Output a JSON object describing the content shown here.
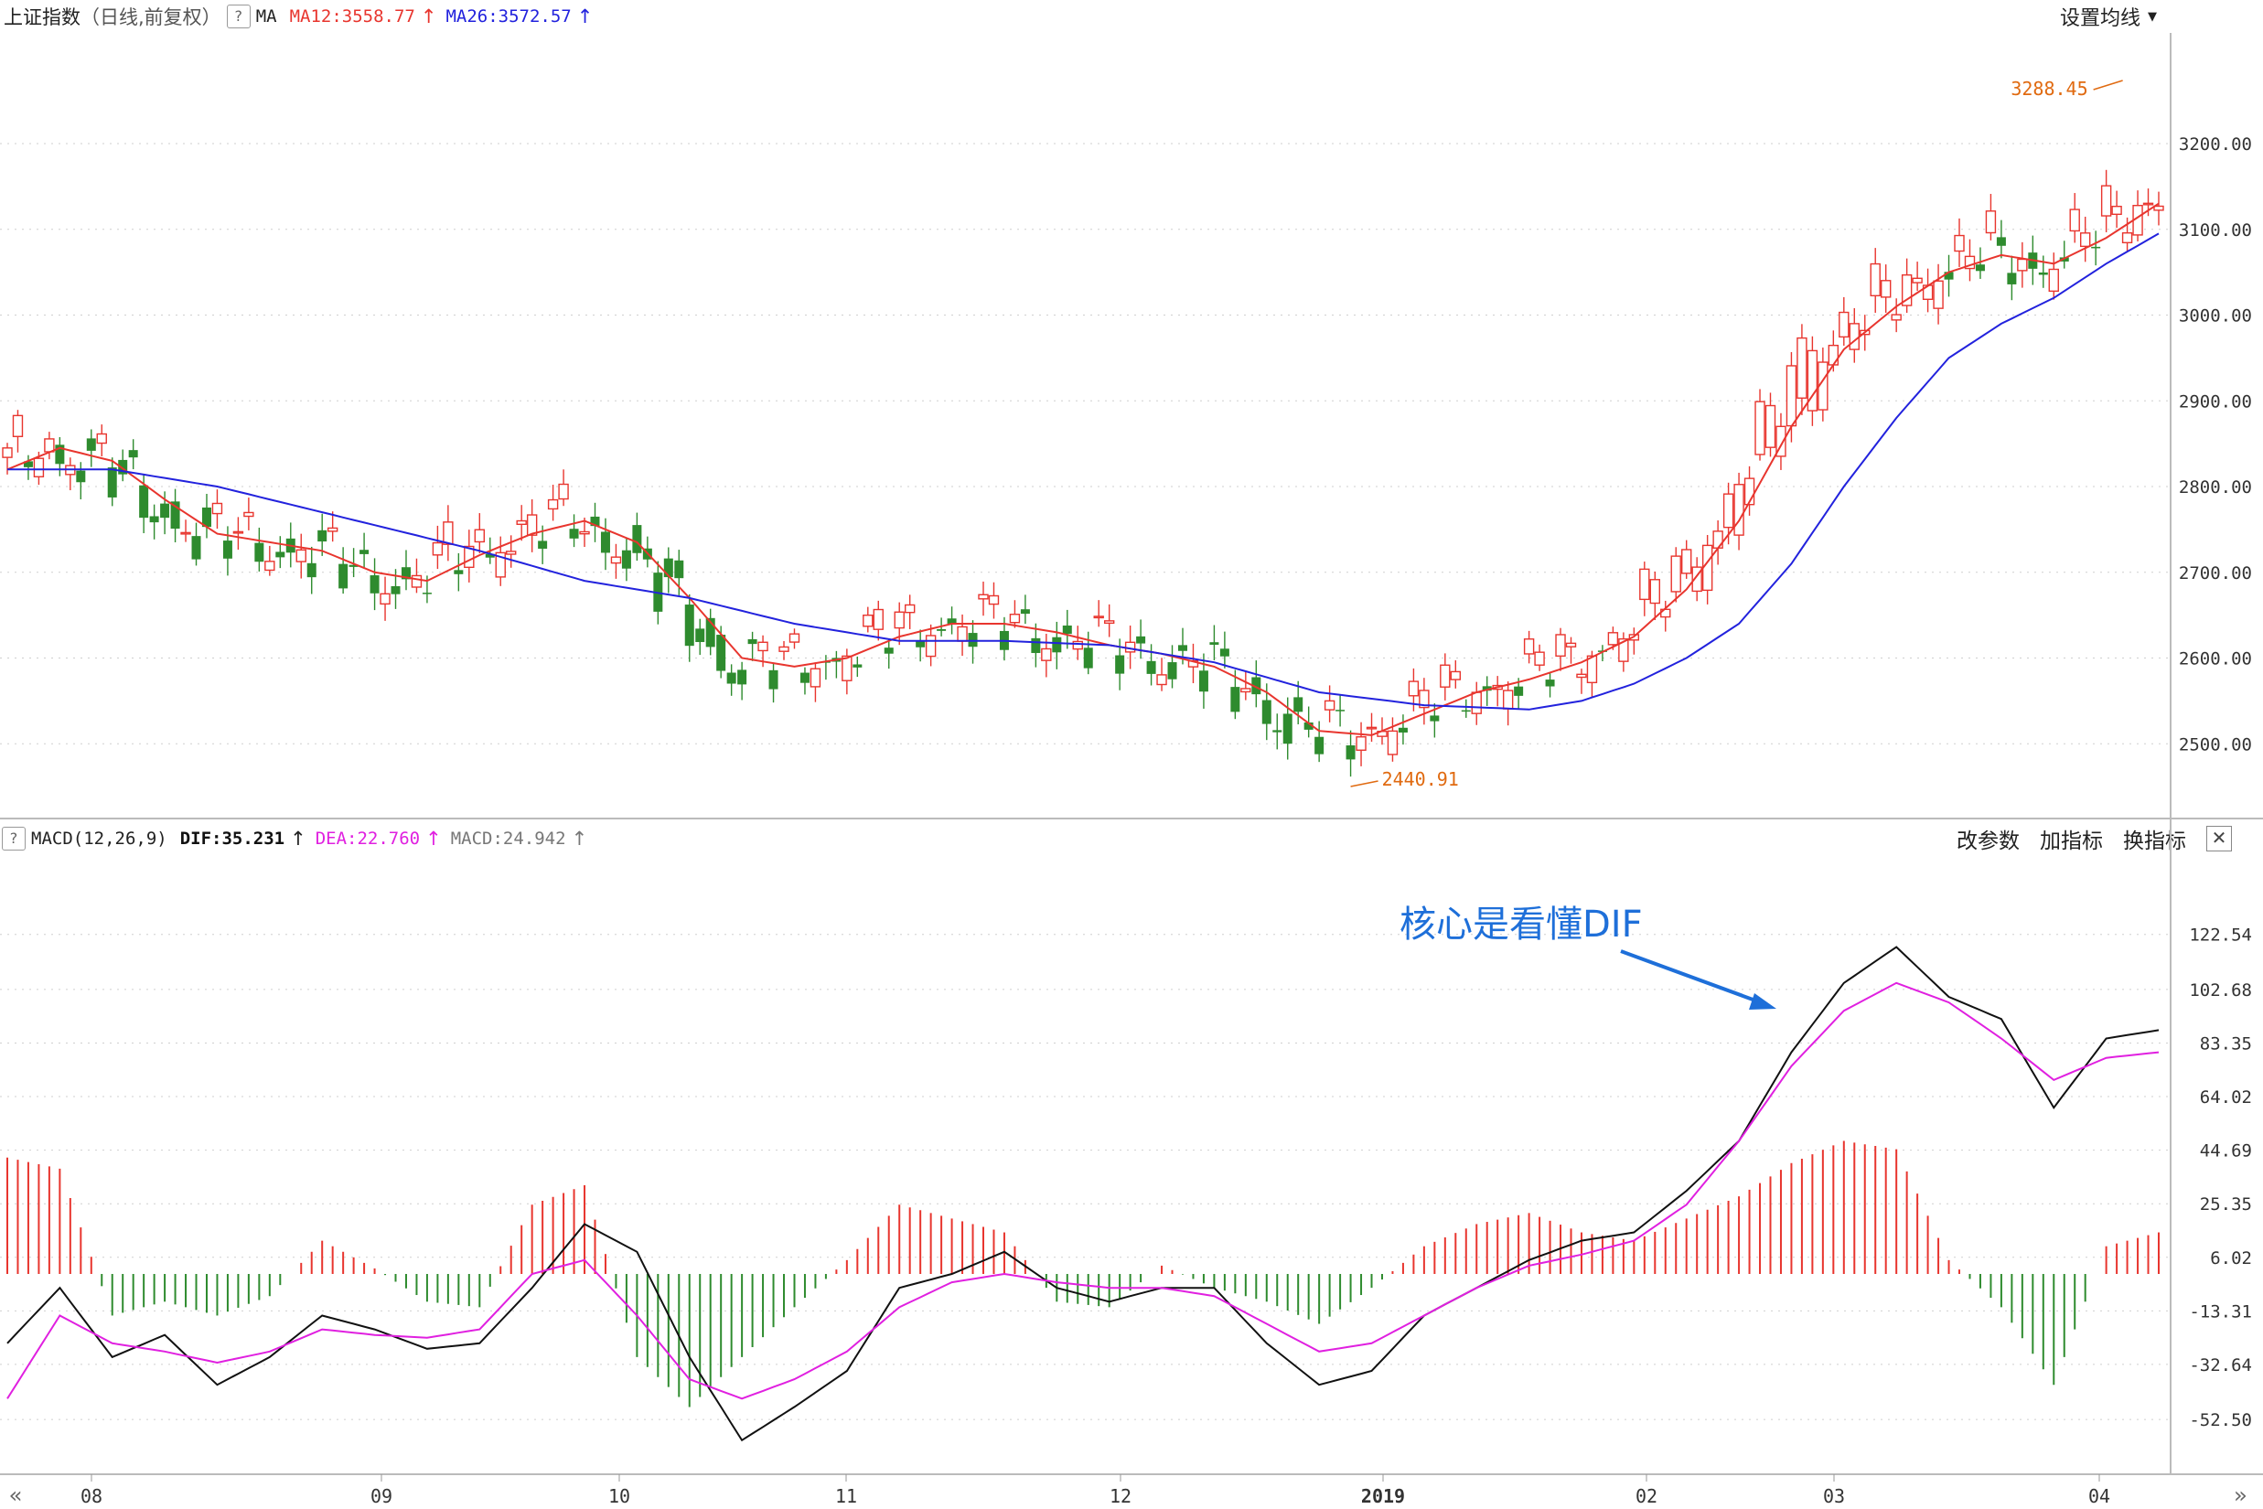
{
  "header": {
    "index_name": "上证指数",
    "period": "（日线,前复权）",
    "help": "?",
    "ma_label": "MA",
    "ma12_label": "MA12:3558.77",
    "ma26_label": "MA26:3572.57",
    "arrow": "↑",
    "settings_label": "设置均线"
  },
  "macd_header": {
    "help": "?",
    "title": "MACD(12,26,9)",
    "dif_label": "DIF:35.231",
    "dea_label": "DEA:22.760",
    "macd_label": "MACD:24.942",
    "arrow": "↑",
    "buttons": [
      "改参数",
      "加指标",
      "换指标"
    ],
    "close": "✕"
  },
  "annotation": {
    "text": "核心是看懂DIF"
  },
  "price_axis": [
    "3200.00",
    "3100.00",
    "3000.00",
    "2900.00",
    "2800.00",
    "2700.00",
    "2600.00",
    "2500.00"
  ],
  "macd_axis": [
    "122.54",
    "102.68",
    "83.35",
    "64.02",
    "44.69",
    "25.35",
    "6.02",
    "-13.31",
    "-32.64",
    "-52.50"
  ],
  "time_axis": [
    "08",
    "09",
    "10",
    "11",
    "12",
    "2019",
    "02",
    "03",
    "04"
  ],
  "high_label": "3288.45",
  "low_label": "2440.91",
  "nav_prev": "«",
  "nav_next": "»",
  "colors": {
    "up": "#e8352e",
    "down": "#2e8b2e",
    "ma12": "#e8352e",
    "ma26": "#2222dd",
    "dif": "#111111",
    "dea": "#e020e0",
    "annotation": "#1e6fd9",
    "extreme": "#e06a10"
  },
  "chart_data": [
    {
      "type": "candlestick",
      "title": "上证指数（日线,前复权）",
      "series": [
        {
          "name": "MA12",
          "anchors": [
            [
              0,
              2820
            ],
            [
              5,
              2845
            ],
            [
              10,
              2830
            ],
            [
              15,
              2785
            ],
            [
              20,
              2745
            ],
            [
              25,
              2735
            ],
            [
              30,
              2725
            ],
            [
              35,
              2700
            ],
            [
              40,
              2690
            ],
            [
              45,
              2720
            ],
            [
              50,
              2745
            ],
            [
              55,
              2760
            ],
            [
              60,
              2735
            ],
            [
              65,
              2670
            ],
            [
              70,
              2600
            ],
            [
              75,
              2590
            ],
            [
              80,
              2600
            ],
            [
              85,
              2625
            ],
            [
              90,
              2640
            ],
            [
              95,
              2640
            ],
            [
              100,
              2630
            ],
            [
              105,
              2615
            ],
            [
              110,
              2605
            ],
            [
              115,
              2590
            ],
            [
              120,
              2560
            ],
            [
              125,
              2515
            ],
            [
              130,
              2510
            ],
            [
              135,
              2535
            ],
            [
              140,
              2560
            ],
            [
              145,
              2575
            ],
            [
              150,
              2595
            ],
            [
              155,
              2625
            ],
            [
              160,
              2680
            ],
            [
              165,
              2760
            ],
            [
              170,
              2870
            ],
            [
              175,
              2960
            ],
            [
              180,
              3010
            ],
            [
              185,
              3050
            ],
            [
              190,
              3070
            ],
            [
              195,
              3060
            ],
            [
              200,
              3090
            ],
            [
              205,
              3130
            ]
          ]
        },
        {
          "name": "MA26",
          "anchors": [
            [
              0,
              2820
            ],
            [
              10,
              2820
            ],
            [
              20,
              2800
            ],
            [
              30,
              2770
            ],
            [
              40,
              2740
            ],
            [
              45,
              2725
            ],
            [
              55,
              2690
            ],
            [
              65,
              2670
            ],
            [
              75,
              2640
            ],
            [
              85,
              2620
            ],
            [
              95,
              2620
            ],
            [
              105,
              2615
            ],
            [
              115,
              2595
            ],
            [
              125,
              2560
            ],
            [
              135,
              2545
            ],
            [
              145,
              2540
            ],
            [
              150,
              2550
            ],
            [
              155,
              2570
            ],
            [
              160,
              2600
            ],
            [
              165,
              2640
            ],
            [
              170,
              2710
            ],
            [
              175,
              2800
            ],
            [
              180,
              2880
            ],
            [
              185,
              2950
            ],
            [
              190,
              2990
            ],
            [
              195,
              3020
            ],
            [
              200,
              3060
            ],
            [
              205,
              3095
            ]
          ]
        }
      ]
    },
    {
      "type": "line",
      "title": "MACD(12,26,9)",
      "series": [
        {
          "name": "DIF",
          "anchors": [
            [
              0,
              -25
            ],
            [
              5,
              -5
            ],
            [
              10,
              -30
            ],
            [
              15,
              -22
            ],
            [
              20,
              -40
            ],
            [
              25,
              -30
            ],
            [
              30,
              -15
            ],
            [
              35,
              -20
            ],
            [
              40,
              -27
            ],
            [
              45,
              -25
            ],
            [
              50,
              -5
            ],
            [
              55,
              18
            ],
            [
              60,
              8
            ],
            [
              65,
              -30
            ],
            [
              70,
              -60
            ],
            [
              75,
              -48
            ],
            [
              80,
              -35
            ],
            [
              85,
              -5
            ],
            [
              90,
              0
            ],
            [
              95,
              8
            ],
            [
              100,
              -5
            ],
            [
              105,
              -10
            ],
            [
              110,
              -5
            ],
            [
              115,
              -5
            ],
            [
              120,
              -25
            ],
            [
              125,
              -40
            ],
            [
              130,
              -35
            ],
            [
              135,
              -15
            ],
            [
              140,
              -5
            ],
            [
              145,
              5
            ],
            [
              150,
              12
            ],
            [
              155,
              15
            ],
            [
              160,
              30
            ],
            [
              165,
              48
            ],
            [
              170,
              80
            ],
            [
              175,
              105
            ],
            [
              180,
              118
            ],
            [
              185,
              100
            ],
            [
              190,
              92
            ],
            [
              195,
              60
            ],
            [
              200,
              85
            ],
            [
              205,
              88
            ]
          ]
        },
        {
          "name": "DEA",
          "anchors": [
            [
              0,
              -45
            ],
            [
              5,
              -15
            ],
            [
              10,
              -25
            ],
            [
              15,
              -28
            ],
            [
              20,
              -32
            ],
            [
              25,
              -28
            ],
            [
              30,
              -20
            ],
            [
              35,
              -22
            ],
            [
              40,
              -23
            ],
            [
              45,
              -20
            ],
            [
              50,
              0
            ],
            [
              55,
              5
            ],
            [
              60,
              -15
            ],
            [
              65,
              -38
            ],
            [
              70,
              -45
            ],
            [
              75,
              -38
            ],
            [
              80,
              -28
            ],
            [
              85,
              -12
            ],
            [
              90,
              -3
            ],
            [
              95,
              0
            ],
            [
              100,
              -3
            ],
            [
              105,
              -5
            ],
            [
              110,
              -5
            ],
            [
              115,
              -8
            ],
            [
              120,
              -18
            ],
            [
              125,
              -28
            ],
            [
              130,
              -25
            ],
            [
              135,
              -15
            ],
            [
              140,
              -5
            ],
            [
              145,
              3
            ],
            [
              150,
              7
            ],
            [
              155,
              12
            ],
            [
              160,
              25
            ],
            [
              165,
              48
            ],
            [
              170,
              75
            ],
            [
              175,
              95
            ],
            [
              180,
              105
            ],
            [
              185,
              98
            ],
            [
              190,
              85
            ],
            [
              195,
              70
            ],
            [
              200,
              78
            ],
            [
              205,
              80
            ]
          ]
        }
      ],
      "histogram_anchors": [
        [
          0,
          42
        ],
        [
          5,
          38
        ],
        [
          10,
          -15
        ],
        [
          15,
          -10
        ],
        [
          20,
          -15
        ],
        [
          25,
          -8
        ],
        [
          30,
          12
        ],
        [
          35,
          2
        ],
        [
          40,
          -10
        ],
        [
          45,
          -12
        ],
        [
          50,
          25
        ],
        [
          55,
          32
        ],
        [
          60,
          -30
        ],
        [
          65,
          -48
        ],
        [
          70,
          -30
        ],
        [
          75,
          -12
        ],
        [
          80,
          5
        ],
        [
          85,
          25
        ],
        [
          90,
          20
        ],
        [
          95,
          15
        ],
        [
          100,
          -10
        ],
        [
          105,
          -12
        ],
        [
          110,
          3
        ],
        [
          115,
          -5
        ],
        [
          120,
          -10
        ],
        [
          125,
          -18
        ],
        [
          130,
          -5
        ],
        [
          135,
          10
        ],
        [
          140,
          18
        ],
        [
          145,
          22
        ],
        [
          150,
          15
        ],
        [
          155,
          12
        ],
        [
          160,
          20
        ],
        [
          165,
          28
        ],
        [
          170,
          40
        ],
        [
          175,
          48
        ],
        [
          180,
          45
        ],
        [
          185,
          5
        ],
        [
          190,
          -12
        ],
        [
          195,
          -40
        ],
        [
          200,
          10
        ],
        [
          205,
          15
        ]
      ]
    }
  ]
}
